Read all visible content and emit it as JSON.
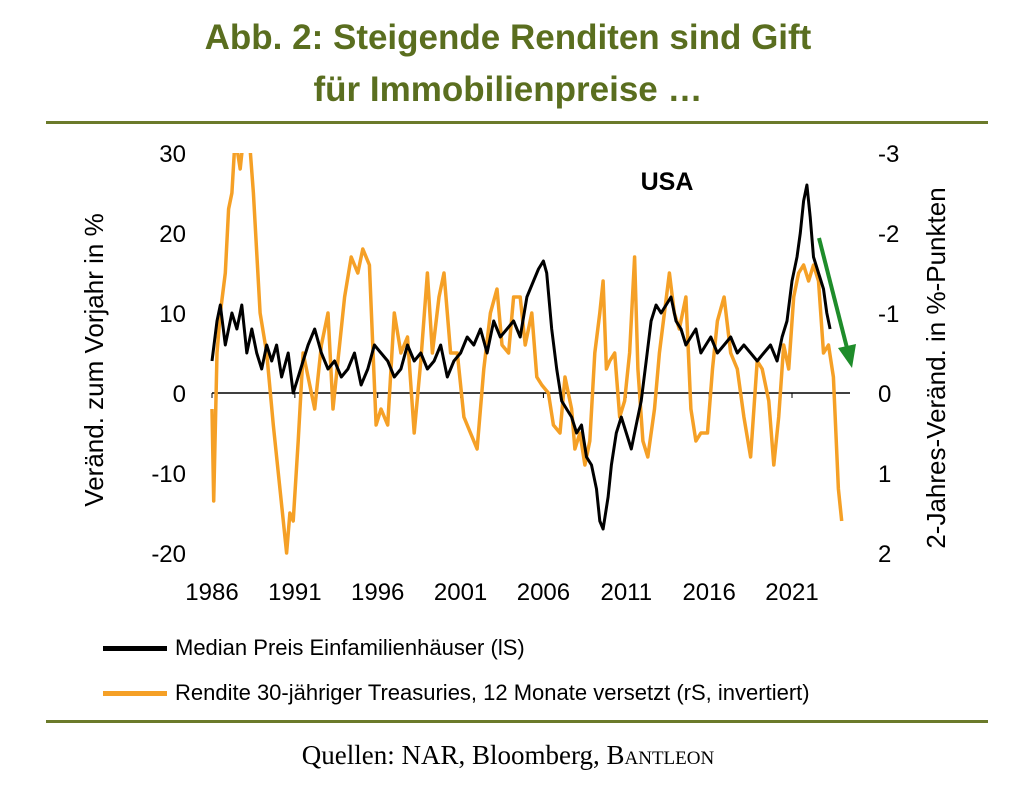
{
  "title_line1": "Abb. 2: Steigende Renditen sind Gift",
  "title_line2": "für Immobilienpreise …",
  "source_prefix": "Quellen: NAR, Bloomberg, ",
  "source_brand": "Bantleon",
  "colors": {
    "title": "#5a6e1f",
    "rule": "#6b7a2a",
    "arrow": "#1e8c2a"
  },
  "chart_data": {
    "type": "line",
    "annotation": "USA",
    "ylabel_left": "Veränd. zum Vorjahr in %",
    "ylabel_right": "2-Jahres-Veränd. in %-Punkten",
    "xlim": [
      1986,
      2024.5
    ],
    "ylim_left": [
      -20,
      30
    ],
    "ylim_right": [
      2,
      -3
    ],
    "right_axis_inverted": true,
    "x_ticks": [
      1986,
      1991,
      1996,
      2001,
      2006,
      2011,
      2016,
      2021
    ],
    "y_ticks_left": [
      -20,
      -10,
      0,
      10,
      20,
      30
    ],
    "y_ticks_right": [
      2,
      1,
      0,
      -1,
      -2,
      -3
    ],
    "series": [
      {
        "name": "Median Preis Einfamilienhäuser (lS)",
        "axis": "left",
        "color": "#000000",
        "points": [
          [
            1986,
            4
          ],
          [
            1986.3,
            9
          ],
          [
            1986.5,
            11
          ],
          [
            1986.8,
            6
          ],
          [
            1987.2,
            10
          ],
          [
            1987.5,
            8
          ],
          [
            1987.8,
            11
          ],
          [
            1988.1,
            5
          ],
          [
            1988.4,
            8
          ],
          [
            1988.7,
            5
          ],
          [
            1989,
            3
          ],
          [
            1989.3,
            6
          ],
          [
            1989.6,
            4
          ],
          [
            1989.9,
            6
          ],
          [
            1990.2,
            2
          ],
          [
            1990.6,
            5
          ],
          [
            1990.9,
            0
          ],
          [
            1991.2,
            2
          ],
          [
            1991.5,
            4
          ],
          [
            1991.8,
            6
          ],
          [
            1992.2,
            8
          ],
          [
            1992.6,
            5
          ],
          [
            1993,
            3
          ],
          [
            1993.4,
            4
          ],
          [
            1993.8,
            2
          ],
          [
            1994.2,
            3
          ],
          [
            1994.6,
            5
          ],
          [
            1995,
            1
          ],
          [
            1995.4,
            3
          ],
          [
            1995.8,
            6
          ],
          [
            1996.2,
            5
          ],
          [
            1996.6,
            4
          ],
          [
            1997,
            2
          ],
          [
            1997.4,
            3
          ],
          [
            1997.8,
            6
          ],
          [
            1998.2,
            4
          ],
          [
            1998.6,
            5
          ],
          [
            1999,
            3
          ],
          [
            1999.4,
            4
          ],
          [
            1999.8,
            6
          ],
          [
            2000.2,
            2
          ],
          [
            2000.6,
            4
          ],
          [
            2001,
            5
          ],
          [
            2001.4,
            7
          ],
          [
            2001.8,
            6
          ],
          [
            2002.2,
            8
          ],
          [
            2002.6,
            5
          ],
          [
            2003,
            9
          ],
          [
            2003.4,
            7
          ],
          [
            2003.8,
            8
          ],
          [
            2004.2,
            9
          ],
          [
            2004.6,
            7
          ],
          [
            2005,
            12
          ],
          [
            2005.4,
            14
          ],
          [
            2005.7,
            15.5
          ],
          [
            2006,
            16.5
          ],
          [
            2006.2,
            15
          ],
          [
            2006.5,
            8
          ],
          [
            2006.8,
            3
          ],
          [
            2007.1,
            -1
          ],
          [
            2007.4,
            -2
          ],
          [
            2007.7,
            -3
          ],
          [
            2008,
            -5
          ],
          [
            2008.3,
            -4
          ],
          [
            2008.6,
            -8
          ],
          [
            2008.9,
            -9
          ],
          [
            2009.2,
            -12
          ],
          [
            2009.4,
            -16
          ],
          [
            2009.6,
            -17
          ],
          [
            2009.9,
            -13
          ],
          [
            2010.1,
            -9
          ],
          [
            2010.4,
            -5
          ],
          [
            2010.7,
            -3
          ],
          [
            2011,
            -5
          ],
          [
            2011.3,
            -7
          ],
          [
            2011.6,
            -4
          ],
          [
            2011.9,
            -1
          ],
          [
            2012.2,
            4
          ],
          [
            2012.5,
            9
          ],
          [
            2012.8,
            11
          ],
          [
            2013.1,
            10
          ],
          [
            2013.4,
            11
          ],
          [
            2013.7,
            12
          ],
          [
            2014,
            9
          ],
          [
            2014.3,
            8
          ],
          [
            2014.6,
            6
          ],
          [
            2014.9,
            7
          ],
          [
            2015.2,
            8
          ],
          [
            2015.5,
            5
          ],
          [
            2015.8,
            6
          ],
          [
            2016.1,
            7
          ],
          [
            2016.5,
            5
          ],
          [
            2016.9,
            6
          ],
          [
            2017.3,
            7
          ],
          [
            2017.7,
            5
          ],
          [
            2018.1,
            6
          ],
          [
            2018.5,
            5
          ],
          [
            2018.9,
            4
          ],
          [
            2019.3,
            5
          ],
          [
            2019.7,
            6
          ],
          [
            2020.1,
            4
          ],
          [
            2020.4,
            7
          ],
          [
            2020.7,
            9
          ],
          [
            2021,
            14
          ],
          [
            2021.3,
            17
          ],
          [
            2021.5,
            20
          ],
          [
            2021.7,
            24
          ],
          [
            2021.9,
            26
          ],
          [
            2022.1,
            22
          ],
          [
            2022.3,
            17
          ],
          [
            2022.6,
            15
          ],
          [
            2022.9,
            13
          ],
          [
            2023.1,
            10
          ],
          [
            2023.3,
            8
          ]
        ]
      },
      {
        "name": "Rendite 30-jähriger Treasuries, 12 Monate versetzt (rS, invertiert)",
        "axis": "right",
        "color": "#f5a026",
        "points": [
          [
            1986,
            0.2
          ],
          [
            1986.1,
            1.35
          ],
          [
            1986.3,
            -0.5
          ],
          [
            1986.5,
            -1.0
          ],
          [
            1986.8,
            -1.5
          ],
          [
            1987.0,
            -2.3
          ],
          [
            1987.2,
            -2.5
          ],
          [
            1987.4,
            -3.2
          ],
          [
            1987.7,
            -2.8
          ],
          [
            1988.1,
            -3.6
          ],
          [
            1988.5,
            -2.5
          ],
          [
            1988.9,
            -1.0
          ],
          [
            1989.3,
            -0.5
          ],
          [
            1989.7,
            0.4
          ],
          [
            1990,
            1.0
          ],
          [
            1990.3,
            1.6
          ],
          [
            1990.5,
            2.0
          ],
          [
            1990.7,
            1.5
          ],
          [
            1990.9,
            1.6
          ],
          [
            1991.2,
            0.6
          ],
          [
            1991.5,
            -0.5
          ],
          [
            1991.8,
            -0.2
          ],
          [
            1992.2,
            0.2
          ],
          [
            1992.6,
            -0.6
          ],
          [
            1993,
            -1.0
          ],
          [
            1993.3,
            0.2
          ],
          [
            1993.6,
            -0.4
          ],
          [
            1994,
            -1.2
          ],
          [
            1994.4,
            -1.7
          ],
          [
            1994.8,
            -1.5
          ],
          [
            1995.1,
            -1.8
          ],
          [
            1995.5,
            -1.6
          ],
          [
            1995.9,
            0.4
          ],
          [
            1996.2,
            0.2
          ],
          [
            1996.6,
            0.4
          ],
          [
            1997,
            -1.0
          ],
          [
            1997.4,
            -0.5
          ],
          [
            1997.8,
            -0.7
          ],
          [
            1998.2,
            0.5
          ],
          [
            1998.6,
            -0.4
          ],
          [
            1999,
            -1.5
          ],
          [
            1999.3,
            -0.5
          ],
          [
            1999.7,
            -1.2
          ],
          [
            2000,
            -1.5
          ],
          [
            2000.4,
            -0.5
          ],
          [
            2000.8,
            -0.5
          ],
          [
            2001.2,
            0.3
          ],
          [
            2001.6,
            0.5
          ],
          [
            2002,
            0.7
          ],
          [
            2002.4,
            -0.3
          ],
          [
            2002.8,
            -1.0
          ],
          [
            2003.2,
            -1.3
          ],
          [
            2003.5,
            -0.6
          ],
          [
            2003.9,
            -0.5
          ],
          [
            2004.2,
            -1.2
          ],
          [
            2004.6,
            -1.2
          ],
          [
            2004.9,
            -0.6
          ],
          [
            2005.3,
            -1.0
          ],
          [
            2005.6,
            -0.2
          ],
          [
            2005.9,
            -0.1
          ],
          [
            2006.3,
            0.0
          ],
          [
            2006.6,
            0.4
          ],
          [
            2007,
            0.5
          ],
          [
            2007.3,
            -0.2
          ],
          [
            2007.7,
            0.2
          ],
          [
            2007.9,
            0.7
          ],
          [
            2008.2,
            0.5
          ],
          [
            2008.5,
            0.9
          ],
          [
            2008.8,
            0.6
          ],
          [
            2009.1,
            -0.5
          ],
          [
            2009.4,
            -1.0
          ],
          [
            2009.6,
            -1.4
          ],
          [
            2009.8,
            -0.3
          ],
          [
            2010,
            -0.4
          ],
          [
            2010.3,
            -0.5
          ],
          [
            2010.6,
            0.3
          ],
          [
            2010.9,
            0.1
          ],
          [
            2011.2,
            -0.5
          ],
          [
            2011.5,
            -1.7
          ],
          [
            2011.7,
            -0.3
          ],
          [
            2012,
            0.6
          ],
          [
            2012.3,
            0.8
          ],
          [
            2012.7,
            0.2
          ],
          [
            2013,
            -0.5
          ],
          [
            2013.3,
            -1.0
          ],
          [
            2013.6,
            -1.5
          ],
          [
            2013.9,
            -1.0
          ],
          [
            2014.2,
            -0.8
          ],
          [
            2014.6,
            -1.2
          ],
          [
            2014.9,
            0.2
          ],
          [
            2015.2,
            0.6
          ],
          [
            2015.5,
            0.5
          ],
          [
            2015.9,
            0.5
          ],
          [
            2016.2,
            -0.3
          ],
          [
            2016.5,
            -0.9
          ],
          [
            2016.9,
            -1.2
          ],
          [
            2017.3,
            -0.5
          ],
          [
            2017.7,
            -0.3
          ],
          [
            2018.1,
            0.3
          ],
          [
            2018.5,
            0.8
          ],
          [
            2018.9,
            -0.4
          ],
          [
            2019.2,
            -0.3
          ],
          [
            2019.6,
            0.1
          ],
          [
            2019.9,
            0.9
          ],
          [
            2020.2,
            0.3
          ],
          [
            2020.5,
            -0.6
          ],
          [
            2020.8,
            -0.3
          ],
          [
            2021.1,
            -1.2
          ],
          [
            2021.4,
            -1.5
          ],
          [
            2021.7,
            -1.6
          ],
          [
            2022,
            -1.4
          ],
          [
            2022.3,
            -1.6
          ],
          [
            2022.6,
            -1.4
          ],
          [
            2022.9,
            -0.5
          ],
          [
            2023.2,
            -0.6
          ],
          [
            2023.5,
            -0.2
          ],
          [
            2023.8,
            1.2
          ],
          [
            2024,
            1.6
          ]
        ]
      }
    ],
    "zero_line": 0
  }
}
